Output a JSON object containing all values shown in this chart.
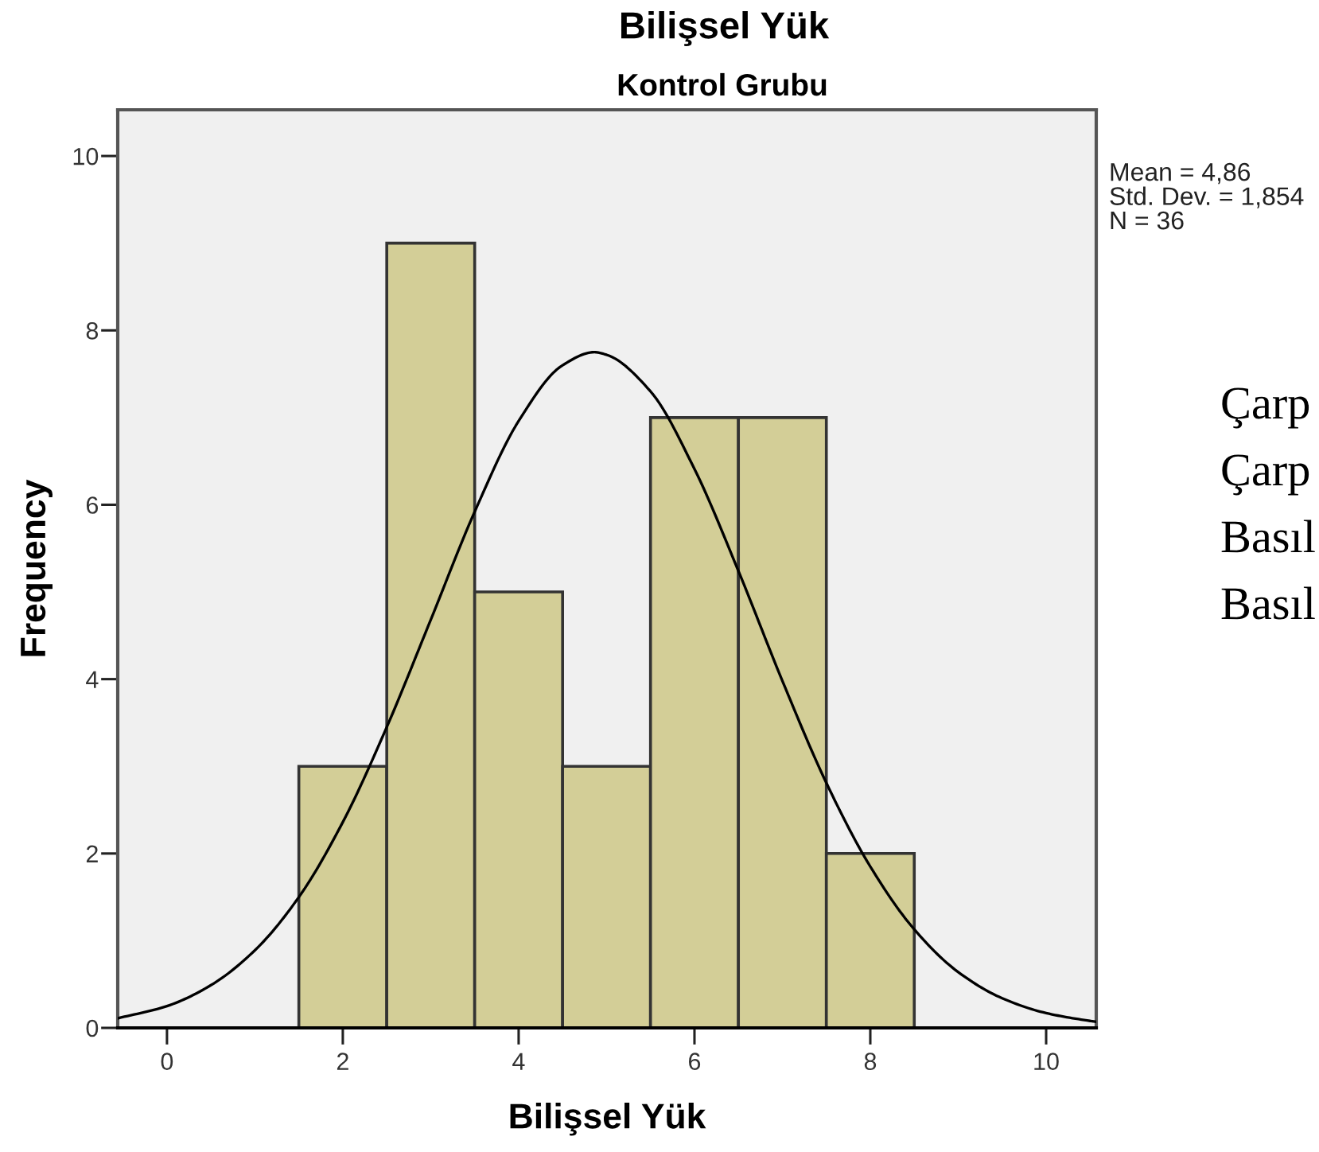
{
  "chart_data": {
    "type": "histogram",
    "title": "Bilişsel Yük",
    "subtitle": "Kontrol Grubu",
    "xlabel": "Bilişsel Yük",
    "ylabel": "Frequency",
    "bins": [
      1.5,
      2.5,
      3.5,
      4.5,
      5.5,
      6.5,
      7.5,
      8.5
    ],
    "series": [
      {
        "color": "#d3ce97",
        "values": [
          3,
          9,
          5,
          3,
          7,
          7,
          2
        ]
      },
      {
        "type": "line",
        "color": "#000000",
        "x": [
          -0.56,
          0,
          0.5,
          1,
          1.5,
          2,
          2.5,
          3,
          3.5,
          4,
          4.5,
          4.86,
          5,
          5.5,
          6,
          6.5,
          7,
          7.5,
          8,
          8.5,
          9,
          9.5,
          10,
          10.5,
          10.57
        ],
        "values": [
          0.11,
          0.25,
          0.49,
          0.89,
          1.5,
          2.36,
          3.45,
          4.68,
          5.92,
          6.96,
          7.6,
          7.75,
          7.72,
          7.3,
          6.41,
          5.24,
          3.98,
          2.81,
          1.85,
          1.13,
          0.64,
          0.34,
          0.17,
          0.08,
          0.07
        ]
      }
    ],
    "xlim": [
      -0.56,
      10.57
    ],
    "ylim": [
      0,
      10.53
    ],
    "xticks": [
      0,
      2,
      4,
      6,
      8,
      10
    ],
    "yticks": [
      0,
      2,
      4,
      6,
      8,
      10
    ],
    "annotations": [
      "Mean = 4,86\nStd. Dev. = 1,854\nN = 36",
      "Çarp",
      "Çarp",
      "Basıl",
      "Basıl"
    ]
  }
}
